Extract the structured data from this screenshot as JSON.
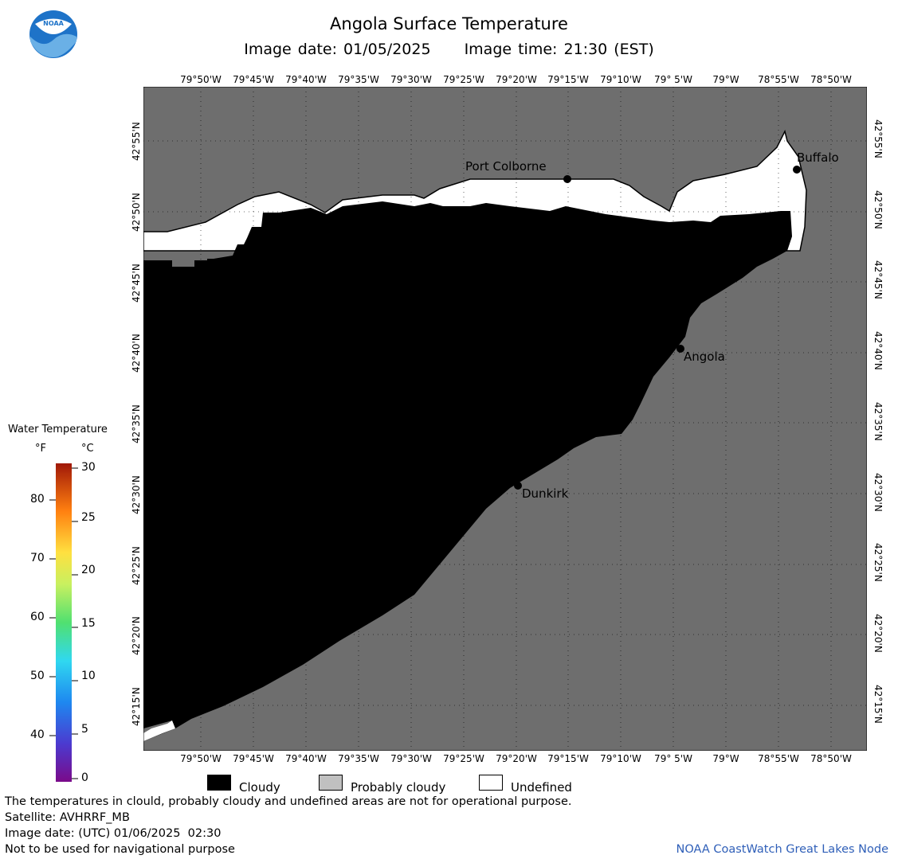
{
  "header": {
    "title": "Angola Surface Temperature",
    "image_date": "Image date: 01/05/2025",
    "image_time": "Image time: 21:30 (EST)"
  },
  "logo": {
    "text": "NOAA",
    "color": "#1e73c8"
  },
  "map": {
    "land_color": "#6e6e6e",
    "cloud_color": "#000000",
    "undefined_color": "#ffffff",
    "longitude_labels": [
      "79°50'W",
      "79°45'W",
      "79°40'W",
      "79°35'W",
      "79°30'W",
      "79°25'W",
      "79°20'W",
      "79°15'W",
      "79°10'W",
      "79° 5'W",
      "79°W",
      "78°55'W",
      "78°50'W"
    ],
    "latitude_labels": [
      "42°55'N",
      "42°50'N",
      "42°45'N",
      "42°40'N",
      "42°35'N",
      "42°30'N",
      "42°25'N",
      "42°20'N",
      "42°15'N"
    ],
    "cities": [
      {
        "name": "Port Colborne"
      },
      {
        "name": "Buffalo"
      },
      {
        "name": "Angola"
      },
      {
        "name": "Dunkirk"
      }
    ]
  },
  "legend": {
    "title": "Water Temperature",
    "unit_f": "°F",
    "unit_c": "°C",
    "f_labels": [
      "80",
      "70",
      "60",
      "50",
      "40"
    ],
    "c_labels": [
      "30",
      "25",
      "20",
      "15",
      "10",
      "5",
      "0"
    ]
  },
  "key": {
    "cloudy": "Cloudy",
    "probably_cloudy": "Probably cloudy",
    "undefined": "Undefined",
    "cloudy_color": "#000000",
    "probably_cloudy_color": "#c0c0c0",
    "undefined_color": "#ffffff"
  },
  "footer": {
    "disclaimer": "The temperatures in clould, probably cloudy and undefined areas are not for operational purpose.",
    "satellite": "Satellite: AVHRRF_MB",
    "utc_date": "Image date: (UTC) 01/06/2025  02:30",
    "navigation": "Not to be used for navigational purpose",
    "node": "NOAA CoastWatch Great Lakes Node"
  }
}
